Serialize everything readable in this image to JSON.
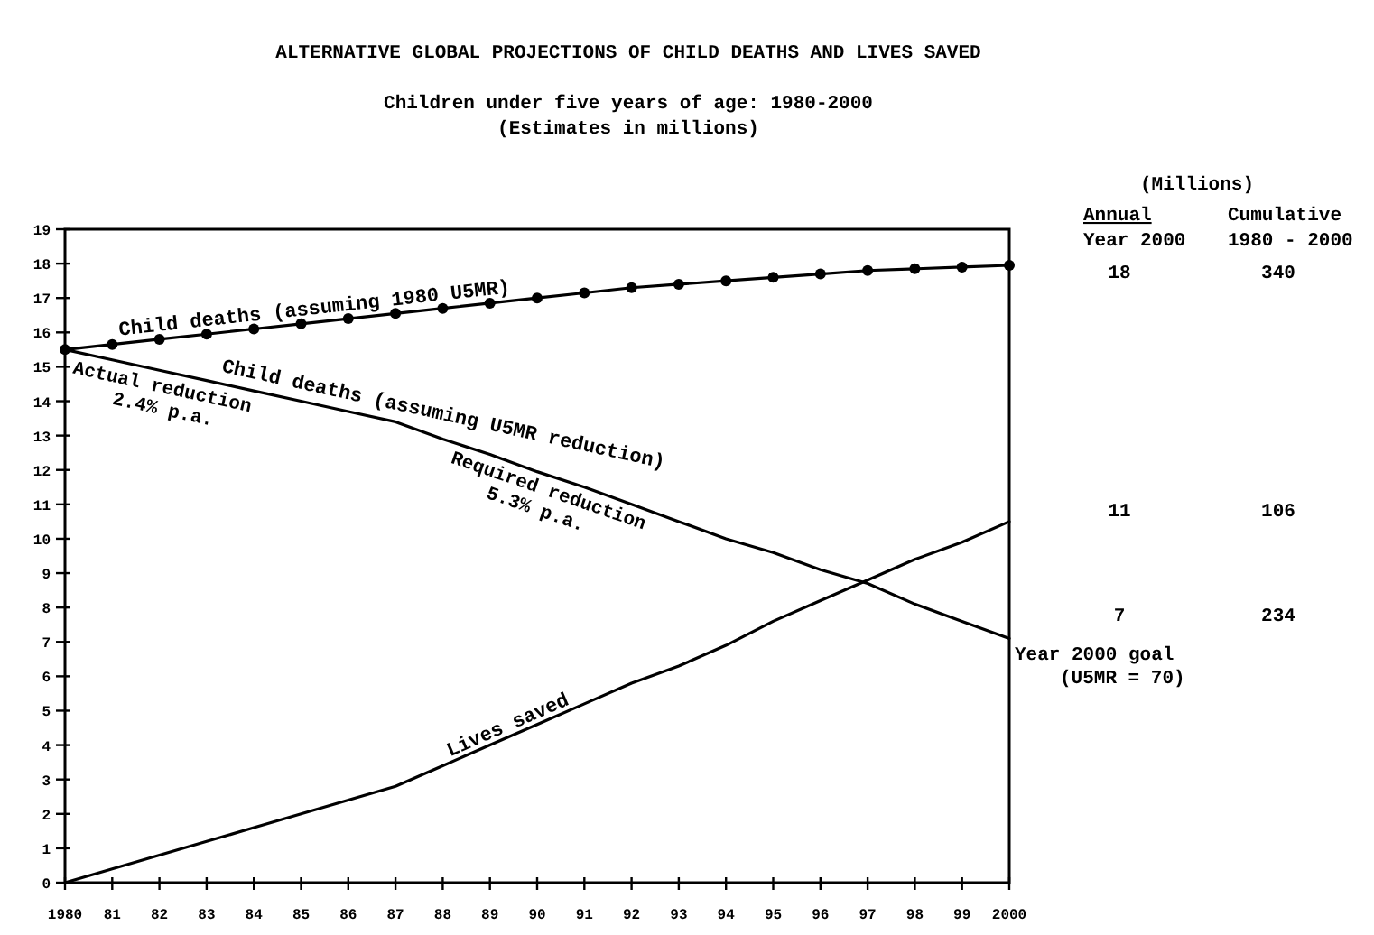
{
  "chart_data": {
    "type": "line",
    "title": "ALTERNATIVE GLOBAL PROJECTIONS OF CHILD DEATHS AND LIVES SAVED",
    "subtitle": "Children under five years of age:  1980-2000\n(Estimates in millions)",
    "x": [
      1980,
      1981,
      1982,
      1983,
      1984,
      1985,
      1986,
      1987,
      1988,
      1989,
      1990,
      1991,
      1992,
      1993,
      1994,
      1995,
      1996,
      1997,
      1998,
      1999,
      2000
    ],
    "series": [
      {
        "name": "Child deaths (assuming 1980 U5MR)",
        "color": "#000000",
        "marker": "circle",
        "values": [
          15.5,
          15.65,
          15.8,
          15.95,
          16.1,
          16.25,
          16.4,
          16.55,
          16.7,
          16.85,
          17.0,
          17.15,
          17.3,
          17.4,
          17.5,
          17.6,
          17.7,
          17.8,
          17.85,
          17.9,
          17.95
        ]
      },
      {
        "name": "Child deaths (assuming U5MR reduction)",
        "color": "#000000",
        "marker": "none",
        "values": [
          15.5,
          15.2,
          14.9,
          14.6,
          14.3,
          14.0,
          13.7,
          13.4,
          12.9,
          12.45,
          11.95,
          11.5,
          11.0,
          10.5,
          10.0,
          9.6,
          9.1,
          8.7,
          8.1,
          7.6,
          7.1
        ]
      },
      {
        "name": "Lives saved",
        "color": "#000000",
        "marker": "none",
        "values": [
          0,
          0.4,
          0.8,
          1.2,
          1.6,
          2.0,
          2.4,
          2.8,
          3.4,
          4.0,
          4.6,
          5.2,
          5.8,
          6.3,
          6.9,
          7.6,
          8.2,
          8.8,
          9.4,
          9.9,
          10.5
        ]
      }
    ],
    "xlim": [
      1980,
      2000
    ],
    "xticks": [
      1980,
      {
        "value": 1981,
        "label": "81"
      },
      {
        "value": 1982,
        "label": "82"
      },
      {
        "value": 1983,
        "label": "83"
      },
      {
        "value": 1984,
        "label": "84"
      },
      {
        "value": 1985,
        "label": "85"
      },
      {
        "value": 1986,
        "label": "86"
      },
      {
        "value": 1987,
        "label": "87"
      },
      {
        "value": 1988,
        "label": "88"
      },
      {
        "value": 1989,
        "label": "89"
      },
      {
        "value": 1990,
        "label": "90"
      },
      {
        "value": 1991,
        "label": "91"
      },
      {
        "value": 1992,
        "label": "92"
      },
      {
        "value": 1993,
        "label": "93"
      },
      {
        "value": 1994,
        "label": "94"
      },
      {
        "value": 1995,
        "label": "95"
      },
      {
        "value": 1996,
        "label": "96"
      },
      {
        "value": 1997,
        "label": "97"
      },
      {
        "value": 1998,
        "label": "98"
      },
      {
        "value": 1999,
        "label": "99"
      },
      2000
    ],
    "ylim": [
      0,
      19
    ],
    "yticks": [
      0,
      1,
      2,
      3,
      4,
      5,
      6,
      7,
      8,
      9,
      10,
      11,
      12,
      13,
      14,
      15,
      16,
      17,
      18,
      19
    ],
    "grid": false,
    "annotations": [
      "Actual reduction\n2.4% p.a.",
      "Required reduction\n5.3% p.a.",
      {
        "text": "Year 2000 goal\n(U5MR = 70)",
        "x": 2000,
        "y": 7.1
      },
      "(Millions)",
      "Annual",
      "Cumulative",
      "Year 2000",
      "1980 - 2000",
      "18",
      "340",
      "11",
      "106",
      "7",
      "234"
    ]
  }
}
